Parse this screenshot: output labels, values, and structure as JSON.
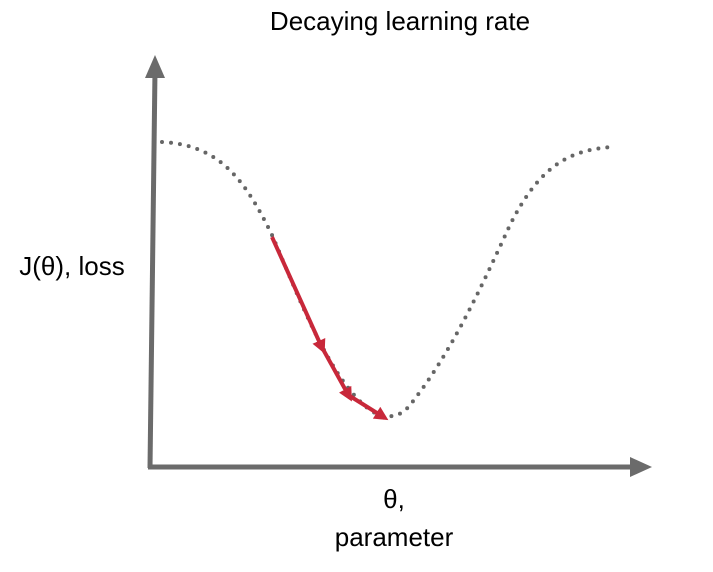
{
  "diagram": {
    "title": "Decaying learning rate",
    "y_label": "J(θ), loss",
    "x_label_line1": "θ,",
    "x_label_line2": "parameter",
    "colors": {
      "axis": "#6b6b6b",
      "curve": "#666666",
      "step_arrows": "#c8283a",
      "text": "#000000"
    },
    "step_count": 3
  }
}
